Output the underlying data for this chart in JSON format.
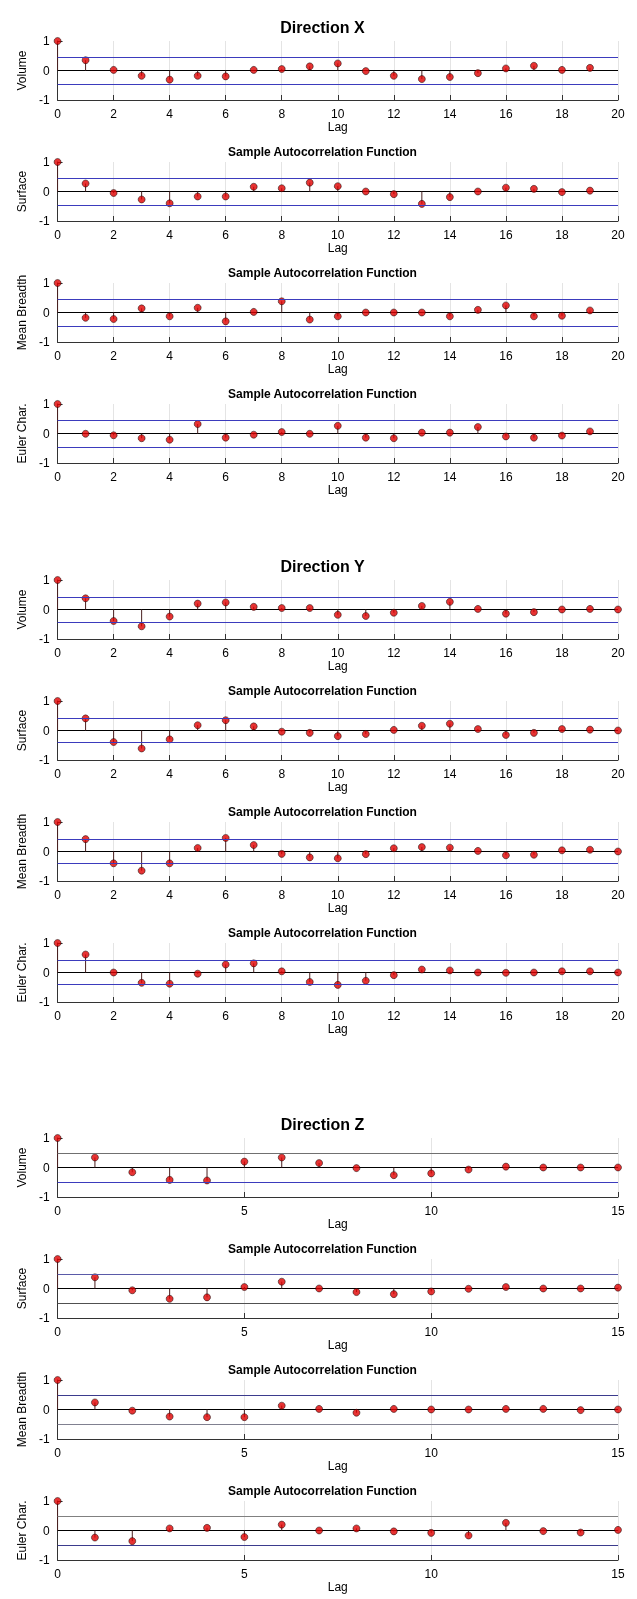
{
  "chart_data": [
    {
      "type": "lollipop",
      "title": "Direction X",
      "xlabel": "Lag",
      "ylabel": "Volume",
      "x": [
        0,
        1,
        2,
        3,
        4,
        5,
        6,
        7,
        8,
        9,
        10,
        11,
        12,
        13,
        14,
        15,
        16,
        17,
        18,
        19
      ],
      "values": [
        1,
        0.35,
        0.02,
        -0.18,
        -0.31,
        -0.18,
        -0.2,
        0.02,
        0.05,
        0.14,
        0.24,
        -0.02,
        -0.18,
        -0.29,
        -0.22,
        -0.09,
        0.07,
        0.16,
        0.02,
        0.09
      ],
      "color": "#e00000",
      "marker": "circle",
      "xlim": [
        0,
        20
      ],
      "xticks": [
        0,
        2,
        4,
        6,
        8,
        10,
        12,
        14,
        16,
        18,
        20
      ],
      "ylim": [
        -1,
        1
      ],
      "yticks": [
        -1,
        0,
        1
      ],
      "grid": "x",
      "ref_lines": [
        {
          "axis": "y",
          "value": 0.45,
          "color": "#3b3bbd"
        },
        {
          "axis": "y",
          "value": -0.45,
          "color": "#3b3bbd"
        }
      ]
    },
    {
      "type": "lollipop",
      "title": "Sample Autocorrelation Function",
      "xlabel": "Lag",
      "ylabel": "Surface",
      "x": [
        0,
        1,
        2,
        3,
        4,
        5,
        6,
        7,
        8,
        9,
        10,
        11,
        12,
        13,
        14,
        15,
        16,
        17,
        18,
        19
      ],
      "values": [
        1,
        0.27,
        -0.05,
        -0.27,
        -0.4,
        -0.17,
        -0.17,
        0.16,
        0.11,
        0.3,
        0.18,
        0,
        -0.09,
        -0.42,
        -0.19,
        0,
        0.13,
        0.09,
        -0.02,
        0.03
      ],
      "color": "#e00000",
      "marker": "circle",
      "xlim": [
        0,
        20
      ],
      "xticks": [
        0,
        2,
        4,
        6,
        8,
        10,
        12,
        14,
        16,
        18,
        20
      ],
      "ylim": [
        -1,
        1
      ],
      "yticks": [
        -1,
        0,
        1
      ],
      "grid": "x",
      "ref_lines": [
        {
          "axis": "y",
          "value": 0.45,
          "color": "#3b3bbd"
        },
        {
          "axis": "y",
          "value": -0.45,
          "color": "#3b3bbd"
        }
      ]
    },
    {
      "type": "lollipop",
      "title": "Sample Autocorrelation Function",
      "xlabel": "Lag",
      "ylabel": "Mean Breadth",
      "x": [
        0,
        1,
        2,
        3,
        4,
        5,
        6,
        7,
        8,
        9,
        10,
        11,
        12,
        13,
        14,
        15,
        16,
        17,
        18,
        19
      ],
      "values": [
        1,
        -0.18,
        -0.22,
        0.14,
        -0.13,
        0.16,
        -0.3,
        0.02,
        0.38,
        -0.24,
        -0.13,
        0,
        0,
        0,
        -0.13,
        0.09,
        0.24,
        -0.13,
        -0.11,
        0.07
      ],
      "color": "#e00000",
      "marker": "circle",
      "xlim": [
        0,
        20
      ],
      "xticks": [
        0,
        2,
        4,
        6,
        8,
        10,
        12,
        14,
        16,
        18,
        20
      ],
      "ylim": [
        -1,
        1
      ],
      "yticks": [
        -1,
        0,
        1
      ],
      "grid": "x",
      "ref_lines": [
        {
          "axis": "y",
          "value": 0.45,
          "color": "#3b3bbd"
        },
        {
          "axis": "y",
          "value": -0.45,
          "color": "#3b3bbd"
        }
      ]
    },
    {
      "type": "lollipop",
      "title": "Sample Autocorrelation Function",
      "xlabel": "Lag",
      "ylabel": "Euler Char.",
      "x": [
        0,
        1,
        2,
        3,
        4,
        5,
        6,
        7,
        8,
        9,
        10,
        11,
        12,
        13,
        14,
        15,
        16,
        17,
        18,
        19
      ],
      "values": [
        1,
        -0.01,
        -0.06,
        -0.16,
        -0.21,
        0.32,
        -0.14,
        -0.04,
        0.05,
        -0.01,
        0.26,
        -0.14,
        -0.16,
        0.03,
        0.03,
        0.22,
        -0.1,
        -0.14,
        -0.07,
        0.07
      ],
      "color": "#e00000",
      "marker": "circle",
      "xlim": [
        0,
        20
      ],
      "xticks": [
        0,
        2,
        4,
        6,
        8,
        10,
        12,
        14,
        16,
        18,
        20
      ],
      "ylim": [
        -1,
        1
      ],
      "yticks": [
        -1,
        0,
        1
      ],
      "grid": "x",
      "ref_lines": [
        {
          "axis": "y",
          "value": 0.45,
          "color": "#3b3bbd"
        },
        {
          "axis": "y",
          "value": -0.45,
          "color": "#3b3bbd"
        }
      ]
    },
    {
      "type": "lollipop",
      "title": "Direction Y",
      "xlabel": "Lag",
      "ylabel": "Volume",
      "x": [
        0,
        1,
        2,
        3,
        4,
        5,
        6,
        7,
        8,
        9,
        10,
        11,
        12,
        13,
        14,
        15,
        16,
        17,
        18,
        19,
        20
      ],
      "values": [
        1,
        0.38,
        -0.39,
        -0.57,
        -0.24,
        0.2,
        0.24,
        0.09,
        0.05,
        0.05,
        -0.18,
        -0.22,
        -0.11,
        0.12,
        0.26,
        0.02,
        -0.14,
        -0.09,
        0,
        0.02,
        0
      ],
      "color": "#e00000",
      "marker": "circle",
      "xlim": [
        0,
        20
      ],
      "xticks": [
        0,
        2,
        4,
        6,
        8,
        10,
        12,
        14,
        16,
        18,
        20
      ],
      "ylim": [
        -1,
        1
      ],
      "yticks": [
        -1,
        0,
        1
      ],
      "grid": "x",
      "ref_lines": [
        {
          "axis": "y",
          "value": 0.42,
          "color": "#3b3bbd"
        },
        {
          "axis": "y",
          "value": -0.42,
          "color": "#3b3bbd"
        }
      ]
    },
    {
      "type": "lollipop",
      "title": "Sample Autocorrelation Function",
      "xlabel": "Lag",
      "ylabel": "Surface",
      "x": [
        0,
        1,
        2,
        3,
        4,
        5,
        6,
        7,
        8,
        9,
        10,
        11,
        12,
        13,
        14,
        15,
        16,
        17,
        18,
        19,
        20
      ],
      "values": [
        1,
        0.41,
        -0.39,
        -0.61,
        -0.3,
        0.18,
        0.35,
        0.14,
        -0.04,
        -0.08,
        -0.19,
        -0.12,
        0.02,
        0.16,
        0.23,
        0.05,
        -0.15,
        -0.08,
        0.05,
        0.03,
        0
      ],
      "color": "#e00000",
      "marker": "circle",
      "xlim": [
        0,
        20
      ],
      "xticks": [
        0,
        2,
        4,
        6,
        8,
        10,
        12,
        14,
        16,
        18,
        20
      ],
      "ylim": [
        -1,
        1
      ],
      "yticks": [
        -1,
        0,
        1
      ],
      "grid": "x",
      "ref_lines": [
        {
          "axis": "y",
          "value": 0.41,
          "color": "#3b3bbd"
        },
        {
          "axis": "y",
          "value": -0.41,
          "color": "#3b3bbd"
        }
      ]
    },
    {
      "type": "lollipop",
      "title": "Sample Autocorrelation Function",
      "xlabel": "Lag",
      "ylabel": "Mean Breadth",
      "x": [
        0,
        1,
        2,
        3,
        4,
        5,
        6,
        7,
        8,
        9,
        10,
        11,
        12,
        13,
        14,
        15,
        16,
        17,
        18,
        19,
        20
      ],
      "values": [
        1,
        0.42,
        -0.4,
        -0.65,
        -0.4,
        0.12,
        0.46,
        0.22,
        -0.08,
        -0.2,
        -0.23,
        -0.09,
        0.11,
        0.15,
        0.13,
        0.02,
        -0.13,
        -0.11,
        0.04,
        0.06,
        0
      ],
      "color": "#e00000",
      "marker": "circle",
      "xlim": [
        0,
        20
      ],
      "xticks": [
        0,
        2,
        4,
        6,
        8,
        10,
        12,
        14,
        16,
        18,
        20
      ],
      "ylim": [
        -1,
        1
      ],
      "yticks": [
        -1,
        0,
        1
      ],
      "grid": "x",
      "ref_lines": [
        {
          "axis": "y",
          "value": 0.41,
          "color": "#3b3bbd"
        },
        {
          "axis": "y",
          "value": -0.41,
          "color": "#3b3bbd"
        }
      ]
    },
    {
      "type": "lollipop",
      "title": "Sample Autocorrelation Function",
      "xlabel": "Lag",
      "ylabel": "Euler Char.",
      "x": [
        0,
        1,
        2,
        3,
        4,
        5,
        6,
        7,
        8,
        9,
        10,
        11,
        12,
        13,
        14,
        15,
        16,
        17,
        18,
        19,
        20
      ],
      "values": [
        1,
        0.61,
        0,
        -0.35,
        -0.38,
        -0.04,
        0.27,
        0.31,
        0.04,
        -0.32,
        -0.42,
        -0.28,
        -0.09,
        0.1,
        0.07,
        0,
        -0.01,
        0,
        0.04,
        0.04,
        0
      ],
      "color": "#e00000",
      "marker": "circle",
      "xlim": [
        0,
        20
      ],
      "xticks": [
        0,
        2,
        4,
        6,
        8,
        10,
        12,
        14,
        16,
        18,
        20
      ],
      "ylim": [
        -1,
        1
      ],
      "yticks": [
        -1,
        0,
        1
      ],
      "grid": "x",
      "ref_lines": [
        {
          "axis": "y",
          "value": 0.41,
          "color": "#3b3bbd"
        },
        {
          "axis": "y",
          "value": -0.41,
          "color": "#3b3bbd"
        }
      ]
    },
    {
      "type": "lollipop",
      "title": "Direction Z",
      "xlabel": "Lag",
      "ylabel": "Volume",
      "x": [
        0,
        1,
        2,
        3,
        4,
        5,
        6,
        7,
        8,
        9,
        10,
        11,
        12,
        13,
        14,
        15
      ],
      "values": [
        1,
        0.34,
        -0.16,
        -0.42,
        -0.44,
        0.2,
        0.34,
        0.15,
        -0.02,
        -0.26,
        -0.2,
        -0.07,
        0.03,
        0,
        0,
        0
      ],
      "color": "#e00000",
      "marker": "circle",
      "xlim": [
        0,
        15
      ],
      "xticks": [
        0,
        5,
        10,
        15
      ],
      "ylim": [
        -1,
        1
      ],
      "yticks": [
        -1,
        0,
        1
      ],
      "grid": "x",
      "ref_lines": [
        {
          "axis": "y",
          "value": 0.5,
          "color": "#707070"
        },
        {
          "axis": "y",
          "value": -0.5,
          "color": "#3b3bbd"
        }
      ]
    },
    {
      "type": "lollipop",
      "title": "Sample Autocorrelation Function",
      "xlabel": "Lag",
      "ylabel": "Surface",
      "x": [
        0,
        1,
        2,
        3,
        4,
        5,
        6,
        7,
        8,
        9,
        10,
        11,
        12,
        13,
        14,
        15
      ],
      "values": [
        1,
        0.38,
        -0.06,
        -0.35,
        -0.3,
        0.05,
        0.23,
        0,
        -0.12,
        -0.19,
        -0.1,
        -0.01,
        0.05,
        0,
        0,
        0.03
      ],
      "color": "#e00000",
      "marker": "circle",
      "xlim": [
        0,
        15
      ],
      "xticks": [
        0,
        5,
        10,
        15
      ],
      "ylim": [
        -1,
        1
      ],
      "yticks": [
        -1,
        0,
        1
      ],
      "grid": "x",
      "ref_lines": [
        {
          "axis": "y",
          "value": 0.5,
          "color": "#5a5aa8"
        },
        {
          "axis": "y",
          "value": -0.5,
          "color": "#505050"
        }
      ]
    },
    {
      "type": "lollipop",
      "title": "Sample Autocorrelation Function",
      "xlabel": "Lag",
      "ylabel": "Mean Breadth",
      "x": [
        0,
        1,
        2,
        3,
        4,
        5,
        6,
        7,
        8,
        9,
        10,
        11,
        12,
        13,
        14,
        15
      ],
      "values": [
        1,
        0.24,
        -0.04,
        -0.24,
        -0.26,
        -0.26,
        0.13,
        0.02,
        -0.11,
        0.02,
        0,
        0,
        0.02,
        0.02,
        -0.02,
        0
      ],
      "color": "#e00000",
      "marker": "circle",
      "xlim": [
        0,
        15
      ],
      "xticks": [
        0,
        5,
        10,
        15
      ],
      "ylim": [
        -1,
        1
      ],
      "yticks": [
        -1,
        0,
        1
      ],
      "grid": "x",
      "ref_lines": [
        {
          "axis": "y",
          "value": 0.5,
          "color": "#3b3b8d"
        },
        {
          "axis": "y",
          "value": -0.5,
          "color": "#808090"
        }
      ]
    },
    {
      "type": "lollipop",
      "title": "Sample Autocorrelation Function",
      "xlabel": "Lag",
      "ylabel": "Euler Char.",
      "x": [
        0,
        1,
        2,
        3,
        4,
        5,
        6,
        7,
        8,
        9,
        10,
        11,
        12,
        13,
        14,
        15
      ],
      "values": [
        1,
        -0.24,
        -0.36,
        0.07,
        0.09,
        -0.22,
        0.2,
        0,
        0.07,
        -0.03,
        -0.08,
        -0.17,
        0.26,
        -0.02,
        -0.07,
        0.02
      ],
      "color": "#e00000",
      "marker": "circle",
      "xlim": [
        0,
        15
      ],
      "xticks": [
        0,
        5,
        10,
        15
      ],
      "ylim": [
        -1,
        1
      ],
      "yticks": [
        -1,
        0,
        1
      ],
      "grid": "x",
      "ref_lines": [
        {
          "axis": "y",
          "value": 0.5,
          "color": "#808080"
        },
        {
          "axis": "y",
          "value": -0.5,
          "color": "#3b3b8d"
        }
      ]
    }
  ]
}
